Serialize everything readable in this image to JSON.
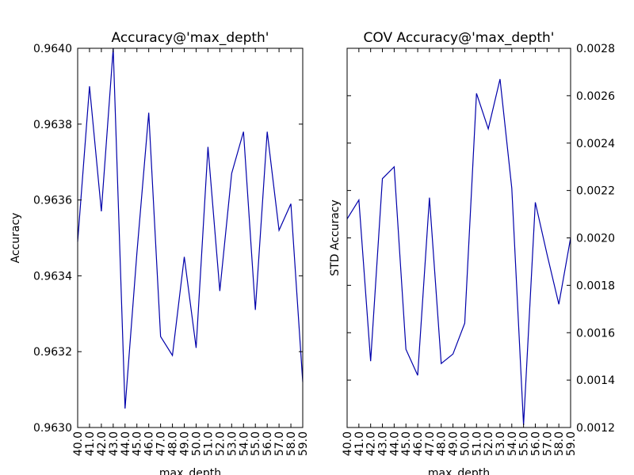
{
  "chart_data": [
    {
      "type": "line",
      "title": "Accuracy@'max_depth'",
      "xlabel": "max_depth",
      "ylabel": "Accuracy",
      "ylabel_side": "left",
      "ylim": [
        0.963,
        0.964
      ],
      "xlim": [
        40,
        59
      ],
      "yticks": [
        "0.9630",
        "0.9632",
        "0.9634",
        "0.9636",
        "0.9638",
        "0.9640"
      ],
      "ytick_values": [
        0.963,
        0.9632,
        0.9634,
        0.9636,
        0.9638,
        0.964
      ],
      "xticks": [
        "40.0",
        "41.0",
        "42.0",
        "43.0",
        "44.0",
        "45.0",
        "46.0",
        "47.0",
        "48.0",
        "49.0",
        "50.0",
        "51.0",
        "52.0",
        "53.0",
        "54.0",
        "55.0",
        "56.0",
        "57.0",
        "58.0",
        "59.0"
      ],
      "x": [
        40,
        41,
        42,
        43,
        44,
        45,
        46,
        47,
        48,
        49,
        50,
        51,
        52,
        53,
        54,
        55,
        56,
        57,
        58,
        59
      ],
      "series": [
        {
          "color": "#0000aa",
          "values": [
            0.96349,
            0.9639,
            0.96357,
            0.964,
            0.96305,
            0.96346,
            0.96383,
            0.96324,
            0.96319,
            0.96345,
            0.96321,
            0.96374,
            0.96336,
            0.96367,
            0.96378,
            0.96331,
            0.96378,
            0.96352,
            0.96359,
            0.96312
          ]
        }
      ],
      "grid": false,
      "legend": "none"
    },
    {
      "type": "line",
      "title": "COV Accuracy@'max_depth'",
      "xlabel": "max_depth",
      "ylabel": "STD Accuracy",
      "ylabel_side": "left",
      "yticks_side": "right",
      "ylim": [
        0.0012,
        0.0028
      ],
      "xlim": [
        40,
        59
      ],
      "yticks": [
        "0.0012",
        "0.0014",
        "0.0016",
        "0.0018",
        "0.0020",
        "0.0022",
        "0.0024",
        "0.0026",
        "0.0028"
      ],
      "ytick_values": [
        0.0012,
        0.0014,
        0.0016,
        0.0018,
        0.002,
        0.0022,
        0.0024,
        0.0026,
        0.0028
      ],
      "xticks": [
        "40.0",
        "41.0",
        "42.0",
        "43.0",
        "44.0",
        "45.0",
        "46.0",
        "47.0",
        "48.0",
        "49.0",
        "50.0",
        "51.0",
        "52.0",
        "53.0",
        "54.0",
        "55.0",
        "56.0",
        "57.0",
        "58.0",
        "59.0"
      ],
      "x": [
        40,
        41,
        42,
        43,
        44,
        45,
        46,
        47,
        48,
        49,
        50,
        51,
        52,
        53,
        54,
        55,
        56,
        57,
        58,
        59
      ],
      "series": [
        {
          "color": "#0000aa",
          "values": [
            0.00208,
            0.00216,
            0.00148,
            0.00225,
            0.0023,
            0.00153,
            0.00142,
            0.00217,
            0.00147,
            0.00151,
            0.00164,
            0.00261,
            0.00246,
            0.00267,
            0.00221,
            0.00121,
            0.00215,
            0.00193,
            0.00172,
            0.002
          ]
        }
      ],
      "grid": false,
      "legend": "none"
    }
  ]
}
